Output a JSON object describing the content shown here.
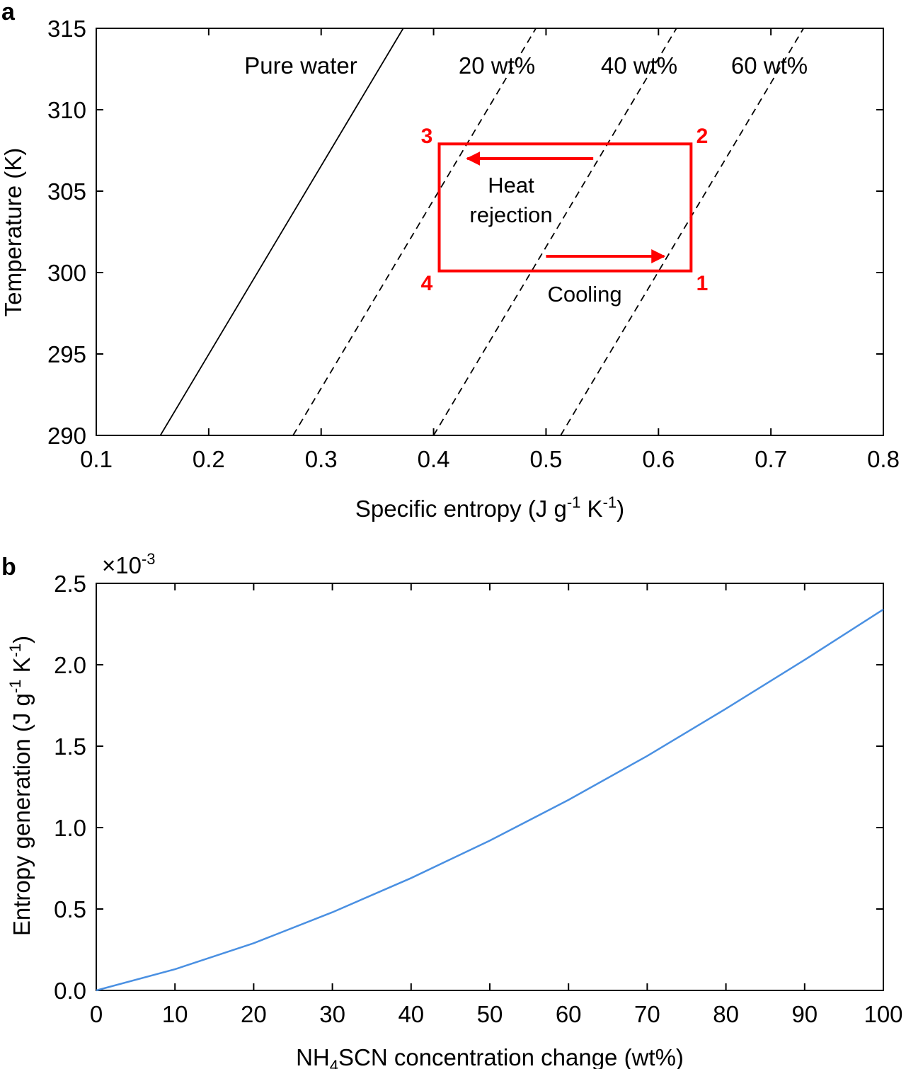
{
  "panel_labels": {
    "a": "a",
    "b": "b"
  },
  "chart_data": [
    {
      "type": "line",
      "title": "",
      "xlabel": "Specific entropy (J g-1 K-1)",
      "xlabel_parts": {
        "main": "Specific entropy (J g",
        "sup1": "-1",
        "mid": " K",
        "sup2": "-1",
        "end": ")"
      },
      "ylabel": "Temperature (K)",
      "xlim": [
        0.1,
        0.8
      ],
      "ylim": [
        290,
        315
      ],
      "xticks": [
        "0.1",
        "0.2",
        "0.3",
        "0.4",
        "0.5",
        "0.6",
        "0.7",
        "0.8"
      ],
      "xtick_values": [
        0.1,
        0.2,
        0.3,
        0.4,
        0.5,
        0.6,
        0.7,
        0.8
      ],
      "yticks": [
        "290",
        "295",
        "300",
        "305",
        "310",
        "315"
      ],
      "ytick_values": [
        290,
        295,
        300,
        305,
        310,
        315
      ],
      "series": [
        {
          "name": "Pure water",
          "style": "solid",
          "x": [
            0.157,
            0.373
          ],
          "y": [
            290,
            315
          ]
        },
        {
          "name": "20 wt%",
          "style": "dashed",
          "x": [
            0.275,
            0.491
          ],
          "y": [
            290,
            315
          ]
        },
        {
          "name": "40 wt%",
          "style": "dashed",
          "x": [
            0.4,
            0.616
          ],
          "y": [
            290,
            315
          ]
        },
        {
          "name": "60 wt%",
          "style": "dashed",
          "x": [
            0.513,
            0.729
          ],
          "y": [
            290,
            315
          ]
        }
      ],
      "cycle": {
        "color": "#ff0000",
        "points": [
          {
            "label": "1",
            "x": 0.629,
            "y": 300.1
          },
          {
            "label": "2",
            "x": 0.629,
            "y": 307.9
          },
          {
            "label": "3",
            "x": 0.405,
            "y": 307.9
          },
          {
            "label": "4",
            "x": 0.405,
            "y": 300.1
          }
        ],
        "arrows": [
          {
            "name": "heat-rejection",
            "from": [
              0.542,
              307.0
            ],
            "to": [
              0.43,
              307.0
            ]
          },
          {
            "name": "cooling",
            "from": [
              0.5,
              301.0
            ],
            "to": [
              0.605,
              301.0
            ]
          }
        ]
      },
      "annotations": {
        "heat_line1": "Heat",
        "heat_line2": "rejection",
        "cooling": "Cooling"
      }
    },
    {
      "type": "line",
      "title": "",
      "xlabel": "NH4SCN concentration change (wt%)",
      "xlabel_parts": {
        "pre": "NH",
        "sub": "4",
        "post": "SCN concentration change (wt%)"
      },
      "ylabel": "Entropy generation (J g-1 K-1)",
      "ylabel_parts": {
        "main": "Entropy generation (J g",
        "sup1": "-1",
        "mid": " K",
        "sup2": "-1",
        "end": ")"
      },
      "multiplier": {
        "base": "×10",
        "exp": "-3"
      },
      "xlim": [
        0,
        100
      ],
      "ylim": [
        0,
        2.5
      ],
      "xticks": [
        "0",
        "10",
        "20",
        "30",
        "40",
        "50",
        "60",
        "70",
        "80",
        "90",
        "100"
      ],
      "xtick_values": [
        0,
        10,
        20,
        30,
        40,
        50,
        60,
        70,
        80,
        90,
        100
      ],
      "yticks": [
        "0.0",
        "0.5",
        "1.0",
        "1.5",
        "2.0",
        "2.5"
      ],
      "ytick_values": [
        0,
        0.5,
        1.0,
        1.5,
        2.0,
        2.5
      ],
      "color": "#4a90e2",
      "series": [
        {
          "name": "Entropy generation",
          "x": [
            0,
            10,
            20,
            30,
            40,
            50,
            60,
            70,
            80,
            90,
            100
          ],
          "y": [
            0,
            0.13,
            0.29,
            0.48,
            0.69,
            0.92,
            1.17,
            1.44,
            1.73,
            2.03,
            2.34
          ]
        }
      ]
    }
  ]
}
